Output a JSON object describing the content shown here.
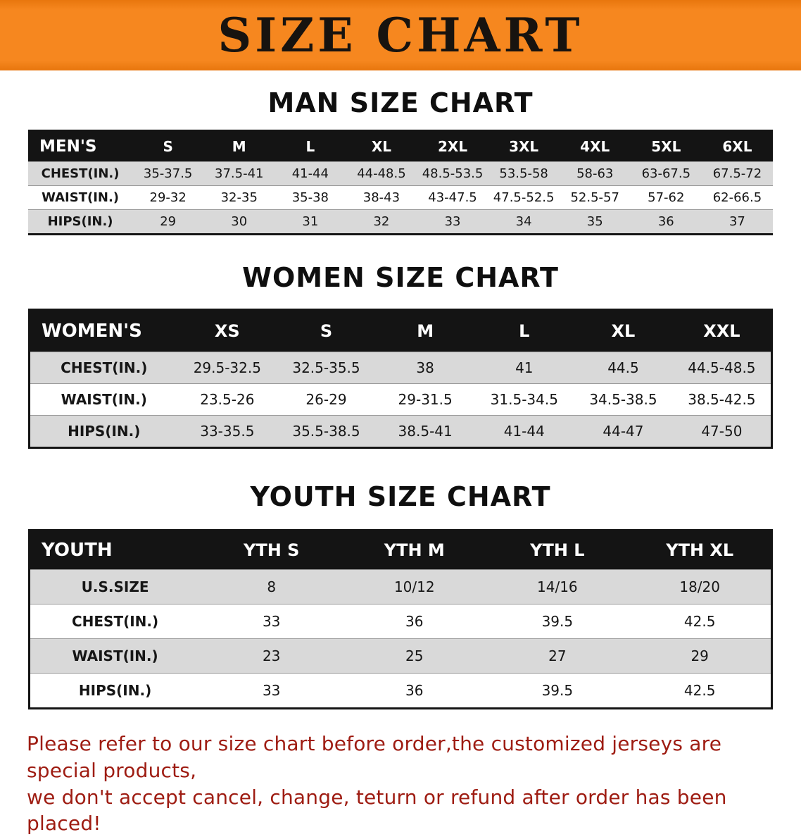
{
  "banner": {
    "title": "SIZE CHART"
  },
  "colors": {
    "banner_bg": "#f6871f",
    "banner_edge": "#e8760d",
    "header_bg": "#141414",
    "row_alt_bg": "#d9d9d9",
    "disclaimer_text": "#9e1c12"
  },
  "sections": [
    {
      "title": "MAN SIZE CHART",
      "table": {
        "header_label": "MEN'S",
        "columns": [
          "S",
          "M",
          "L",
          "XL",
          "2XL",
          "3XL",
          "4XL",
          "5XL",
          "6XL"
        ],
        "rows": [
          {
            "label": "CHEST(IN.)",
            "values": [
              "35-37.5",
              "37.5-41",
              "41-44",
              "44-48.5",
              "48.5-53.5",
              "53.5-58",
              "58-63",
              "63-67.5",
              "67.5-72"
            ]
          },
          {
            "label": "WAIST(IN.)",
            "values": [
              "29-32",
              "32-35",
              "35-38",
              "38-43",
              "43-47.5",
              "47.5-52.5",
              "52.5-57",
              "57-62",
              "62-66.5"
            ]
          },
          {
            "label": "HIPS(IN.)",
            "values": [
              "29",
              "30",
              "31",
              "32",
              "33",
              "34",
              "35",
              "36",
              "37"
            ]
          }
        ]
      }
    },
    {
      "title": "WOMEN SIZE CHART",
      "table": {
        "header_label": "WOMEN'S",
        "columns": [
          "XS",
          "S",
          "M",
          "L",
          "XL",
          "XXL"
        ],
        "rows": [
          {
            "label": "CHEST(IN.)",
            "values": [
              "29.5-32.5",
              "32.5-35.5",
              "38",
              "41",
              "44.5",
              "44.5-48.5"
            ]
          },
          {
            "label": "WAIST(IN.)",
            "values": [
              "23.5-26",
              "26-29",
              "29-31.5",
              "31.5-34.5",
              "34.5-38.5",
              "38.5-42.5"
            ]
          },
          {
            "label": "HIPS(IN.)",
            "values": [
              "33-35.5",
              "35.5-38.5",
              "38.5-41",
              "41-44",
              "44-47",
              "47-50"
            ]
          }
        ]
      }
    },
    {
      "title": "YOUTH SIZE CHART",
      "table": {
        "header_label": "YOUTH",
        "columns": [
          "YTH S",
          "YTH M",
          "YTH L",
          "YTH XL"
        ],
        "rows": [
          {
            "label": "U.S.SIZE",
            "values": [
              "8",
              "10/12",
              "14/16",
              "18/20"
            ]
          },
          {
            "label": "CHEST(IN.)",
            "values": [
              "33",
              "36",
              "39.5",
              "42.5"
            ]
          },
          {
            "label": "WAIST(IN.)",
            "values": [
              "23",
              "25",
              "27",
              "29"
            ]
          },
          {
            "label": "HIPS(IN.)",
            "values": [
              "33",
              "36",
              "39.5",
              "42.5"
            ]
          }
        ]
      }
    }
  ],
  "disclaimer": {
    "line1": "Please refer to our size chart before order,the customized jerseys are special products,",
    "line2": "we don't accept cancel, change, teturn or refund after order has been placed!"
  }
}
